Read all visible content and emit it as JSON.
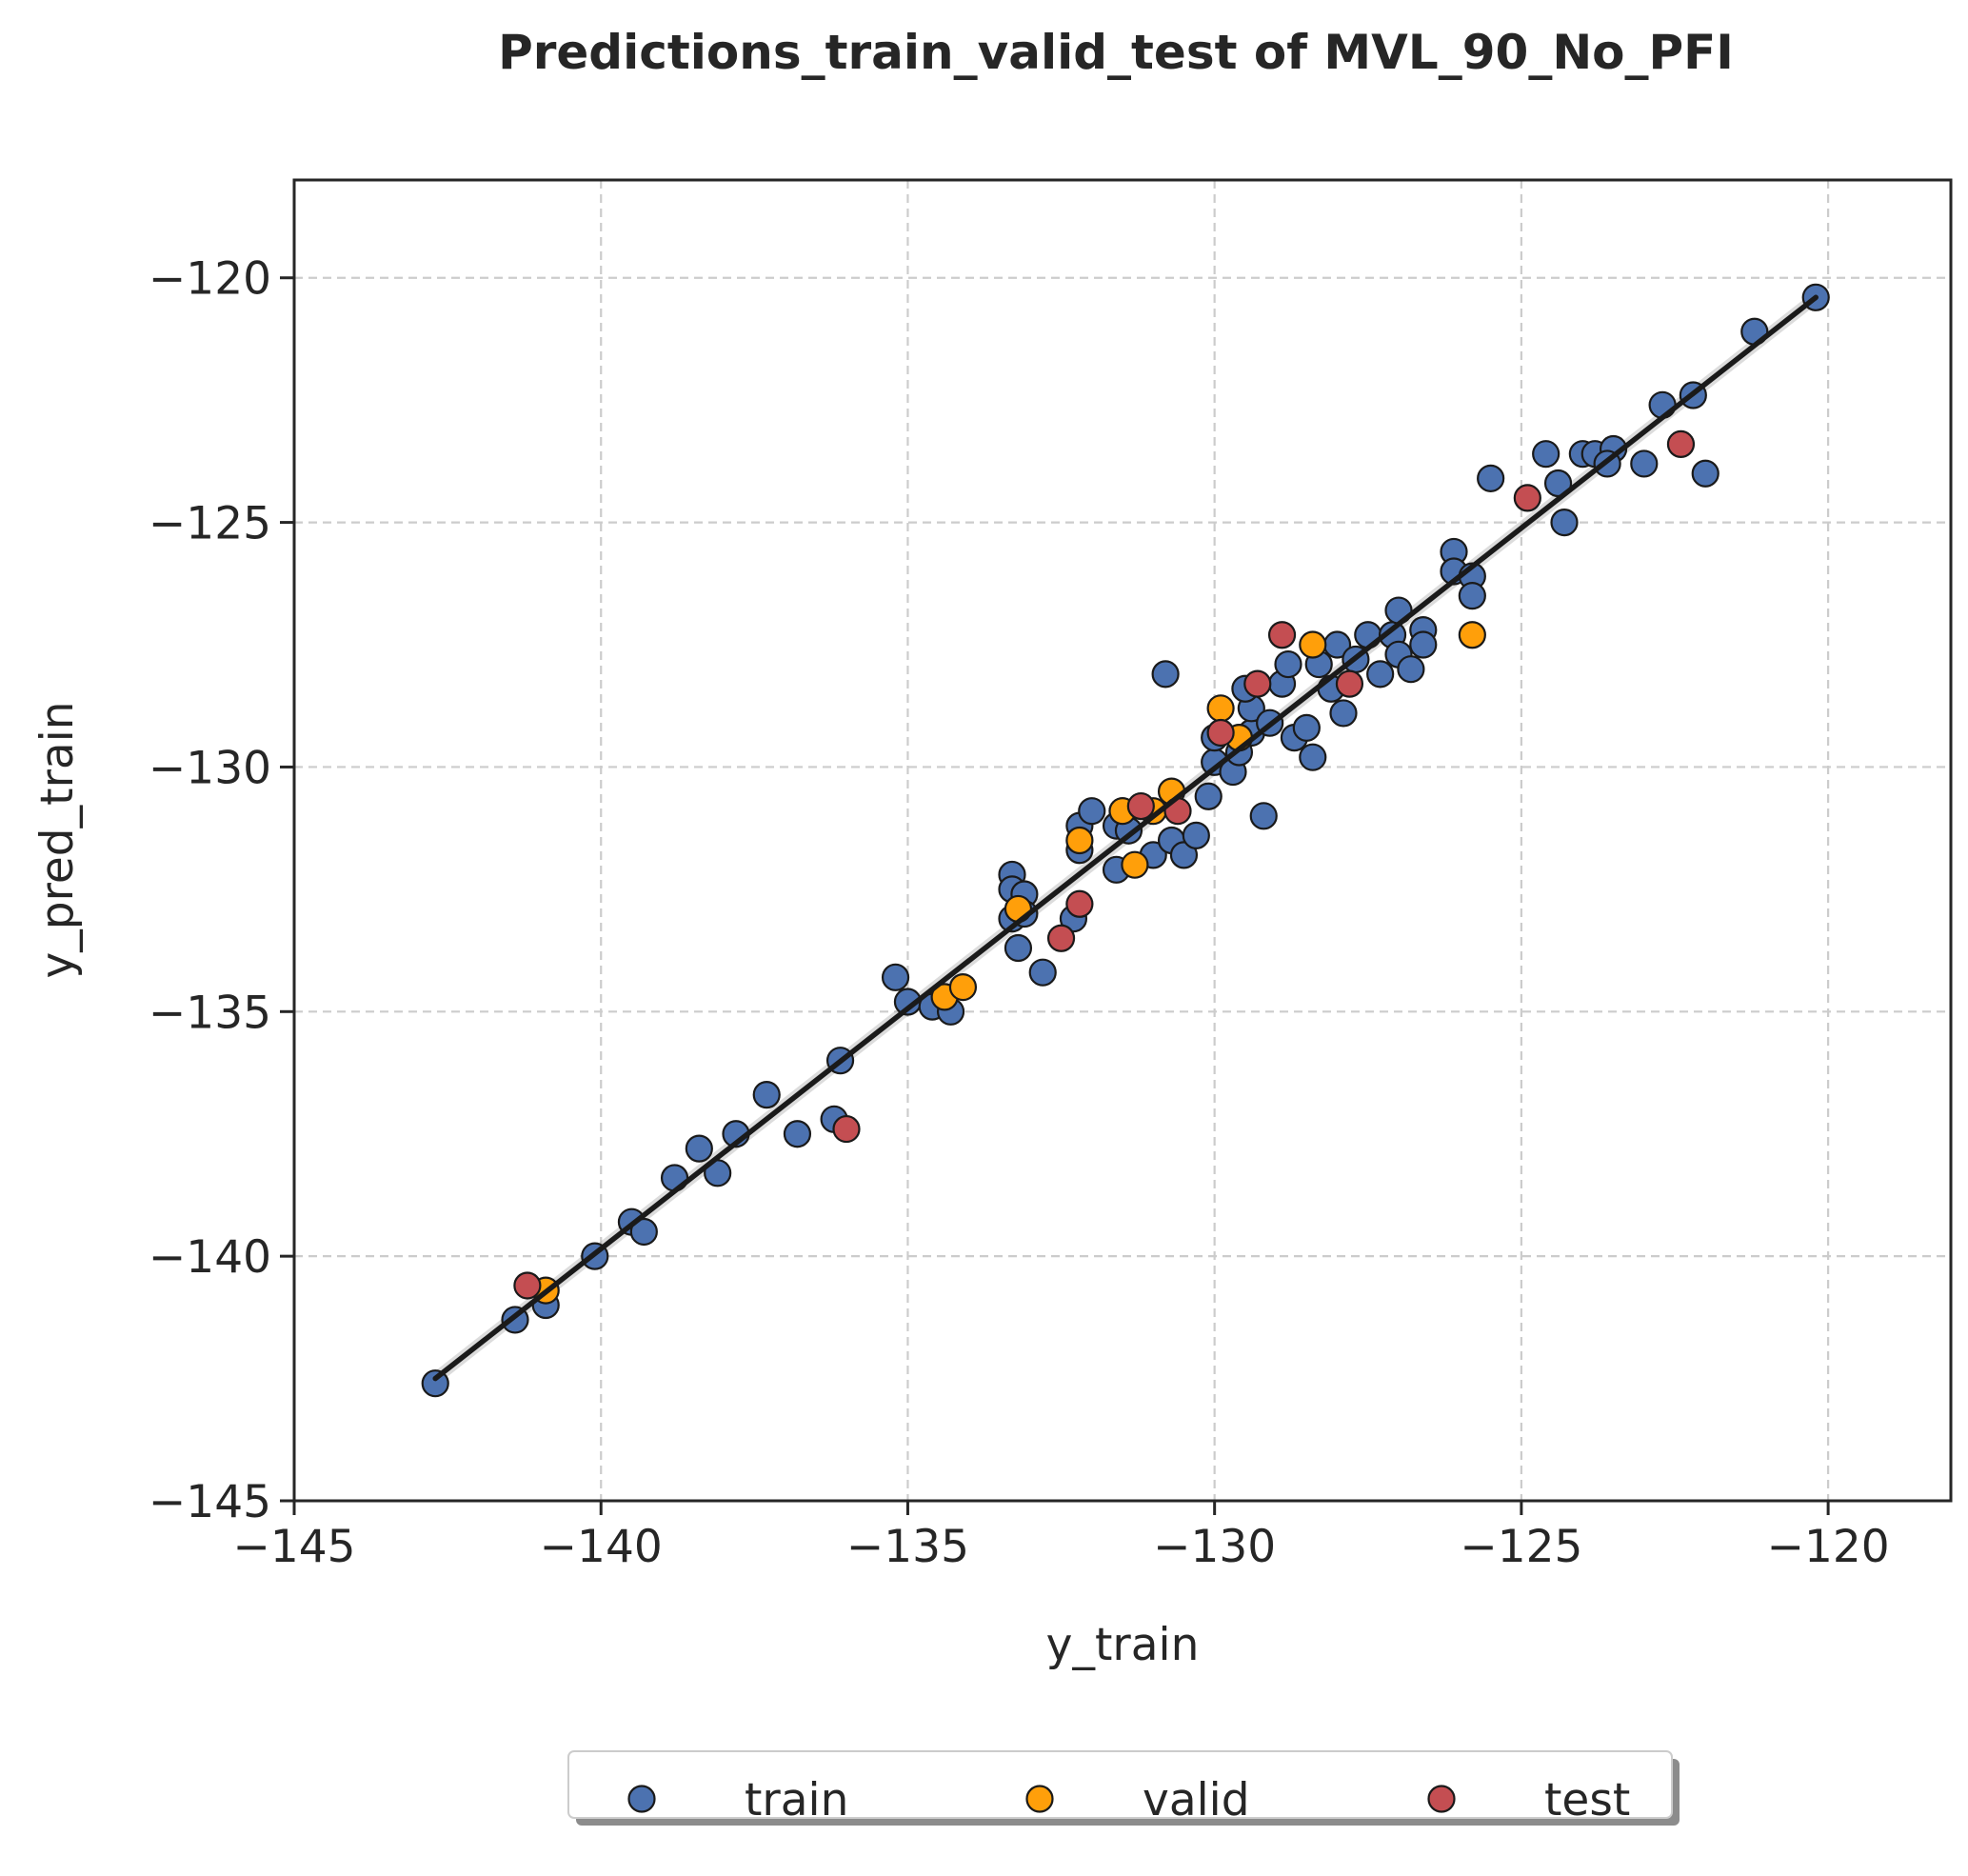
{
  "chart_data": {
    "type": "scatter",
    "title": "Predictions_train_valid_test of MVL_90_No_PFI",
    "xlabel": "y_train",
    "ylabel": "y_pred_train",
    "xlim": [
      -145,
      -118
    ],
    "ylim": [
      -145,
      -118
    ],
    "xticks": [
      -145,
      -140,
      -135,
      -130,
      -125,
      -120
    ],
    "yticks": [
      -145,
      -140,
      -135,
      -130,
      -125,
      -120
    ],
    "xtick_labels": [
      "−145",
      "−140",
      "−135",
      "−130",
      "−125",
      "−120"
    ],
    "ytick_labels": [
      "−145",
      "−140",
      "−135",
      "−130",
      "−125",
      "−120"
    ],
    "grid": true,
    "legend_position": "bottom-center, below plot",
    "fit_line": {
      "x": [
        -142.7,
        -120.2
      ],
      "y": [
        -142.5,
        -120.4
      ],
      "color": "#1a1a1a"
    },
    "series": [
      {
        "name": "train",
        "color": "#4c72b0",
        "points": [
          [
            -142.7,
            -142.6
          ],
          [
            -141.4,
            -141.3
          ],
          [
            -140.9,
            -141.0
          ],
          [
            -140.1,
            -140.0
          ],
          [
            -139.5,
            -139.3
          ],
          [
            -139.3,
            -139.5
          ],
          [
            -138.8,
            -138.4
          ],
          [
            -138.4,
            -137.8
          ],
          [
            -138.1,
            -138.3
          ],
          [
            -137.8,
            -137.5
          ],
          [
            -137.3,
            -136.7
          ],
          [
            -136.8,
            -137.5
          ],
          [
            -136.2,
            -137.2
          ],
          [
            -136.1,
            -136.0
          ],
          [
            -135.2,
            -134.3
          ],
          [
            -135.0,
            -134.8
          ],
          [
            -134.6,
            -134.9
          ],
          [
            -134.3,
            -135.0
          ],
          [
            -133.3,
            -132.2
          ],
          [
            -133.3,
            -132.5
          ],
          [
            -133.1,
            -132.6
          ],
          [
            -133.3,
            -133.1
          ],
          [
            -133.1,
            -133.0
          ],
          [
            -133.2,
            -133.7
          ],
          [
            -132.8,
            -134.2
          ],
          [
            -132.3,
            -133.1
          ],
          [
            -132.2,
            -131.2
          ],
          [
            -132.2,
            -131.7
          ],
          [
            -132.0,
            -130.9
          ],
          [
            -131.6,
            -131.2
          ],
          [
            -131.5,
            -130.9
          ],
          [
            -131.4,
            -131.3
          ],
          [
            -131.6,
            -132.1
          ],
          [
            -131.0,
            -131.8
          ],
          [
            -130.7,
            -131.5
          ],
          [
            -130.5,
            -131.8
          ],
          [
            -130.3,
            -131.4
          ],
          [
            -130.1,
            -130.6
          ],
          [
            -130.8,
            -128.1
          ],
          [
            -130.0,
            -129.9
          ],
          [
            -130.0,
            -129.4
          ],
          [
            -129.7,
            -130.1
          ],
          [
            -129.6,
            -129.7
          ],
          [
            -129.4,
            -129.3
          ],
          [
            -129.4,
            -128.8
          ],
          [
            -129.5,
            -128.4
          ],
          [
            -129.2,
            -131.0
          ],
          [
            -129.1,
            -129.1
          ],
          [
            -128.9,
            -128.3
          ],
          [
            -128.8,
            -127.9
          ],
          [
            -128.7,
            -129.4
          ],
          [
            -128.5,
            -129.2
          ],
          [
            -128.4,
            -129.8
          ],
          [
            -128.3,
            -127.9
          ],
          [
            -128.1,
            -128.4
          ],
          [
            -128.0,
            -127.5
          ],
          [
            -127.9,
            -128.9
          ],
          [
            -127.7,
            -127.8
          ],
          [
            -127.5,
            -127.3
          ],
          [
            -127.3,
            -128.1
          ],
          [
            -127.1,
            -127.3
          ],
          [
            -127.0,
            -127.7
          ],
          [
            -127.0,
            -126.8
          ],
          [
            -126.8,
            -128.0
          ],
          [
            -126.6,
            -127.2
          ],
          [
            -126.6,
            -127.5
          ],
          [
            -126.1,
            -125.6
          ],
          [
            -126.1,
            -126.0
          ],
          [
            -125.8,
            -126.1
          ],
          [
            -125.8,
            -126.5
          ],
          [
            -125.5,
            -124.1
          ],
          [
            -124.6,
            -123.6
          ],
          [
            -124.4,
            -124.2
          ],
          [
            -124.3,
            -125.0
          ],
          [
            -124.0,
            -123.6
          ],
          [
            -123.8,
            -123.6
          ],
          [
            -123.5,
            -123.5
          ],
          [
            -123.6,
            -123.8
          ],
          [
            -123.0,
            -123.8
          ],
          [
            -122.7,
            -122.6
          ],
          [
            -122.2,
            -122.4
          ],
          [
            -122.0,
            -124.0
          ],
          [
            -121.2,
            -121.1
          ],
          [
            -120.2,
            -120.4
          ]
        ]
      },
      {
        "name": "valid",
        "color": "#ff9f0a",
        "points": [
          [
            -140.9,
            -140.7
          ],
          [
            -134.4,
            -134.7
          ],
          [
            -134.1,
            -134.5
          ],
          [
            -133.2,
            -132.9
          ],
          [
            -132.2,
            -131.5
          ],
          [
            -131.5,
            -130.9
          ],
          [
            -131.3,
            -132.0
          ],
          [
            -131.0,
            -130.9
          ],
          [
            -130.7,
            -130.5
          ],
          [
            -129.9,
            -128.8
          ],
          [
            -129.6,
            -129.4
          ],
          [
            -128.4,
            -127.5
          ],
          [
            -125.8,
            -127.3
          ]
        ]
      },
      {
        "name": "test",
        "color": "#c44e52",
        "points": [
          [
            -141.2,
            -140.6
          ],
          [
            -136.0,
            -137.4
          ],
          [
            -132.5,
            -133.5
          ],
          [
            -132.2,
            -132.8
          ],
          [
            -131.2,
            -130.8
          ],
          [
            -130.6,
            -130.9
          ],
          [
            -129.9,
            -129.3
          ],
          [
            -129.3,
            -128.3
          ],
          [
            -128.9,
            -127.3
          ],
          [
            -127.8,
            -128.3
          ],
          [
            -124.9,
            -124.5
          ],
          [
            -122.4,
            -123.4
          ]
        ]
      }
    ]
  }
}
